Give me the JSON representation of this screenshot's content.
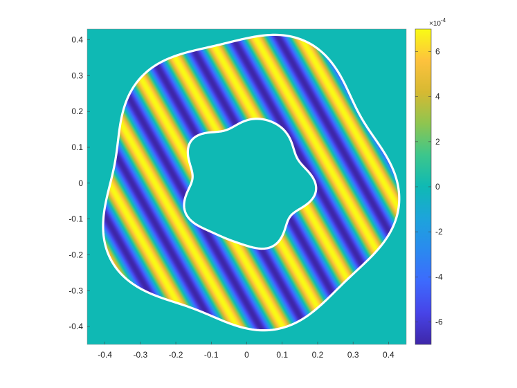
{
  "chart_data": {
    "type": "heatmap",
    "title": "",
    "xlabel": "",
    "ylabel": "",
    "xlim": [
      -0.45,
      0.45
    ],
    "ylim": [
      -0.45,
      0.43
    ],
    "x_ticks": [
      -0.4,
      -0.3,
      -0.2,
      -0.1,
      0,
      0.1,
      0.2,
      0.3,
      0.4
    ],
    "x_tick_labels": [
      "-0.4",
      "-0.3",
      "-0.2",
      "-0.1",
      "0",
      "0.1",
      "0.2",
      "0.3",
      "0.4"
    ],
    "y_ticks": [
      0.4,
      0.3,
      0.2,
      0.1,
      0,
      -0.1,
      -0.2,
      -0.3,
      -0.4
    ],
    "y_tick_labels": [
      "0.4",
      "0.3",
      "0.2",
      "0.1",
      "0",
      "-0.1",
      "-0.2",
      "-0.3",
      "-0.4"
    ],
    "field": {
      "description": "plane wave within annular domain",
      "amplitude": 0.0007,
      "wave_vector": [
        48.6,
        28.0
      ],
      "phase": 1.57,
      "background_value": 0
    },
    "domain": {
      "outer_radius": 0.405,
      "outer_modulation": [
        {
          "k": 5,
          "amp": 0.022,
          "phase": 0.6
        },
        {
          "k": 3,
          "amp": 0.012,
          "phase": 1.4
        }
      ],
      "inner_radius": 0.175,
      "inner_modulation": [
        {
          "k": 5,
          "amp": 0.016,
          "phase": 0.3
        },
        {
          "k": 7,
          "amp": 0.006,
          "phase": 1.0
        }
      ],
      "boundary_color": "#ffffff"
    },
    "colormap": "parula",
    "colorbar": {
      "clim": [
        -0.0007,
        0.0007
      ],
      "ticks": [
        6,
        4,
        2,
        0,
        -2,
        -4,
        -6
      ],
      "tick_labels": [
        "6",
        "4",
        "2",
        "0",
        "-2",
        "-4",
        "-6"
      ],
      "exponent_base": "×10",
      "exponent_power": "-4"
    },
    "grid": false,
    "legend": "none"
  }
}
